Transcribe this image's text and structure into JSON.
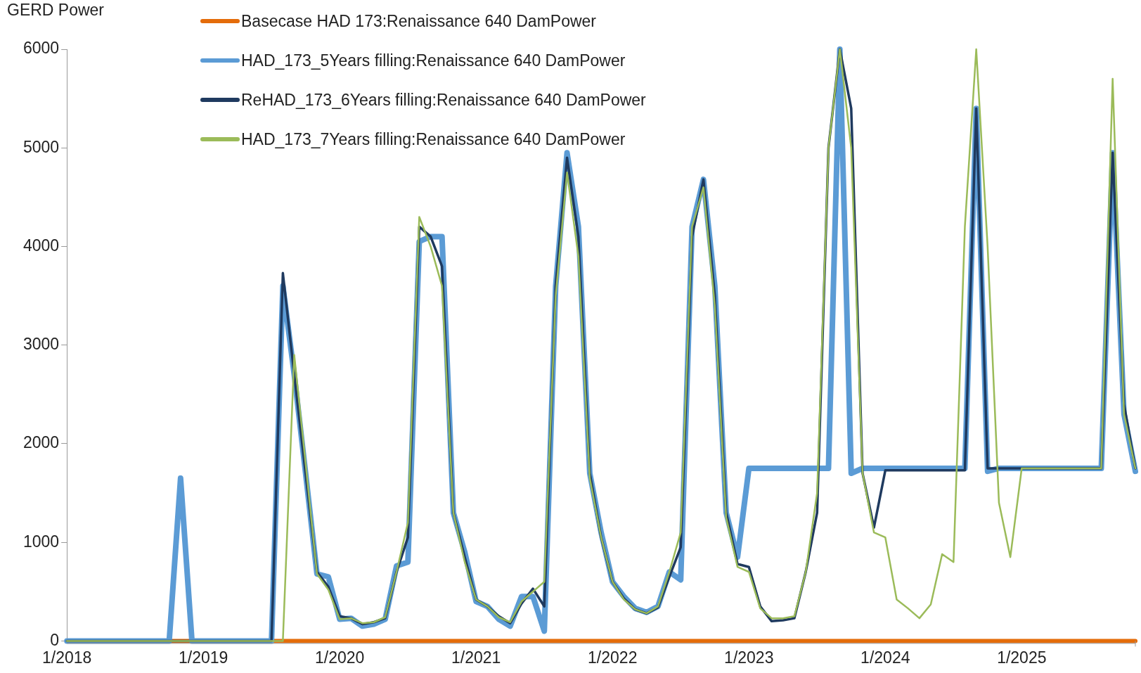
{
  "chart_data": {
    "type": "line",
    "ylabel": "GERD Power",
    "x": [
      "2018-01",
      "2018-02",
      "2018-03",
      "2018-04",
      "2018-05",
      "2018-06",
      "2018-07",
      "2018-08",
      "2018-09",
      "2018-10",
      "2018-11",
      "2018-12",
      "2019-01",
      "2019-02",
      "2019-03",
      "2019-04",
      "2019-05",
      "2019-06",
      "2019-07",
      "2019-08",
      "2019-09",
      "2019-10",
      "2019-11",
      "2019-12",
      "2020-01",
      "2020-02",
      "2020-03",
      "2020-04",
      "2020-05",
      "2020-06",
      "2020-07",
      "2020-08",
      "2020-09",
      "2020-10",
      "2020-11",
      "2020-12",
      "2021-01",
      "2021-02",
      "2021-03",
      "2021-04",
      "2021-05",
      "2021-06",
      "2021-07",
      "2021-08",
      "2021-09",
      "2021-10",
      "2021-11",
      "2021-12",
      "2022-01",
      "2022-02",
      "2022-03",
      "2022-04",
      "2022-05",
      "2022-06",
      "2022-07",
      "2022-08",
      "2022-09",
      "2022-10",
      "2022-11",
      "2022-12",
      "2023-01",
      "2023-02",
      "2023-03",
      "2023-04",
      "2023-05",
      "2023-06",
      "2023-07",
      "2023-08",
      "2023-09",
      "2023-10",
      "2023-11",
      "2023-12",
      "2024-01",
      "2024-02",
      "2024-03",
      "2024-04",
      "2024-05",
      "2024-06",
      "2024-07",
      "2024-08",
      "2024-09",
      "2024-10",
      "2024-11",
      "2024-12",
      "2025-01",
      "2025-02",
      "2025-03",
      "2025-04",
      "2025-05",
      "2025-06",
      "2025-07",
      "2025-08",
      "2025-09",
      "2025-10",
      "2025-11"
    ],
    "series": [
      {
        "name": "Basecase HAD 173:Renaissance 640 DamPower",
        "color": "#e46c0a",
        "values": [
          null,
          null,
          null,
          null,
          null,
          null,
          null,
          null,
          0,
          0,
          0,
          0,
          0,
          0,
          0,
          0,
          0,
          0,
          0,
          0,
          0,
          0,
          0,
          0,
          0,
          0,
          0,
          0,
          0,
          0,
          0,
          0,
          0,
          0,
          0,
          0,
          0,
          0,
          0,
          0,
          0,
          0,
          0,
          0,
          0,
          0,
          0,
          0,
          0,
          0,
          0,
          0,
          0,
          0,
          0,
          0,
          0,
          0,
          0,
          0,
          0,
          0,
          0,
          0,
          0,
          0,
          0,
          0,
          0,
          0,
          0,
          0,
          0,
          0,
          0,
          0,
          0,
          0,
          0,
          0,
          0,
          0,
          0,
          0,
          0,
          0,
          0,
          0,
          0,
          0,
          0,
          0,
          0,
          0,
          0
        ]
      },
      {
        "name": "HAD_173_5Years filling:Renaissance 640 DamPower",
        "color": "#5b9bd5",
        "values": [
          0,
          0,
          0,
          0,
          0,
          0,
          0,
          0,
          0,
          0,
          1650,
          0,
          0,
          0,
          0,
          0,
          0,
          0,
          0,
          3600,
          2700,
          1700,
          680,
          650,
          220,
          230,
          150,
          170,
          220,
          760,
          800,
          4050,
          4100,
          4100,
          1300,
          900,
          400,
          350,
          220,
          150,
          450,
          450,
          100,
          3600,
          4950,
          4200,
          1700,
          1100,
          600,
          450,
          330,
          290,
          350,
          700,
          620,
          4200,
          4680,
          3600,
          1300,
          850,
          1750,
          1750,
          1750,
          1750,
          1750,
          1750,
          1750,
          1750,
          6000,
          1700,
          1750,
          1750,
          1750,
          1750,
          1750,
          1750,
          1750,
          1750,
          1750,
          1750,
          5400,
          1720,
          1750,
          1750,
          1750,
          1750,
          1750,
          1750,
          1750,
          1750,
          1750,
          1750,
          4950,
          2300,
          1720
        ]
      },
      {
        "name": "ReHAD_173_6Years filling:Renaissance 640 DamPower",
        "color": "#1f3a5f",
        "values": [
          0,
          0,
          0,
          0,
          0,
          0,
          0,
          0,
          0,
          0,
          0,
          0,
          0,
          0,
          0,
          0,
          0,
          0,
          0,
          3730,
          2700,
          1700,
          700,
          550,
          250,
          230,
          170,
          190,
          230,
          700,
          1050,
          4200,
          4100,
          3800,
          1300,
          850,
          420,
          350,
          250,
          180,
          380,
          530,
          350,
          3600,
          4900,
          4100,
          1700,
          1050,
          600,
          430,
          320,
          280,
          340,
          650,
          950,
          4100,
          4680,
          3500,
          1300,
          780,
          750,
          350,
          200,
          210,
          230,
          700,
          1300,
          5000,
          6000,
          5400,
          1700,
          1150,
          1730,
          1730,
          1730,
          1730,
          1730,
          1730,
          1730,
          1730,
          5400,
          1750,
          1750,
          1750,
          1750,
          1750,
          1750,
          1750,
          1750,
          1750,
          1750,
          1750,
          4950,
          2400,
          1750
        ]
      },
      {
        "name": "HAD_173_7Years filling:Renaissance 640 DamPower",
        "color": "#9bbb59",
        "values": [
          0,
          0,
          0,
          0,
          0,
          0,
          0,
          0,
          0,
          0,
          0,
          0,
          0,
          0,
          0,
          0,
          0,
          0,
          0,
          0,
          2900,
          1800,
          680,
          520,
          220,
          230,
          180,
          190,
          240,
          700,
          1200,
          4300,
          4000,
          3600,
          1300,
          800,
          420,
          350,
          240,
          190,
          400,
          500,
          600,
          3500,
          4750,
          3900,
          1650,
          1050,
          600,
          420,
          320,
          280,
          350,
          700,
          1100,
          4200,
          4600,
          3400,
          1250,
          750,
          700,
          330,
          230,
          230,
          250,
          700,
          1500,
          5000,
          6000,
          5000,
          1700,
          1100,
          1050,
          420,
          330,
          230,
          370,
          880,
          800,
          4200,
          6000,
          4000,
          1400,
          850,
          1750,
          1750,
          1750,
          1750,
          1750,
          1750,
          1750,
          1750,
          5700,
          2300,
          1750
        ]
      }
    ],
    "xlim": [
      "2018-01",
      "2025-11"
    ],
    "xticks": [
      {
        "value": "2018-01",
        "label": "1/2018"
      },
      {
        "value": "2019-01",
        "label": "1/2019"
      },
      {
        "value": "2020-01",
        "label": "1/2020"
      },
      {
        "value": "2021-01",
        "label": "1/2021"
      },
      {
        "value": "2022-01",
        "label": "1/2022"
      },
      {
        "value": "2023-01",
        "label": "1/2023"
      },
      {
        "value": "2024-01",
        "label": "1/2024"
      },
      {
        "value": "2025-01",
        "label": "1/2025"
      }
    ],
    "ylim": [
      0,
      6000
    ],
    "yticks": [
      0,
      1000,
      2000,
      3000,
      4000,
      5000,
      6000
    ],
    "grid": false,
    "legend": "top",
    "marker": "none",
    "line_style": "solid"
  }
}
